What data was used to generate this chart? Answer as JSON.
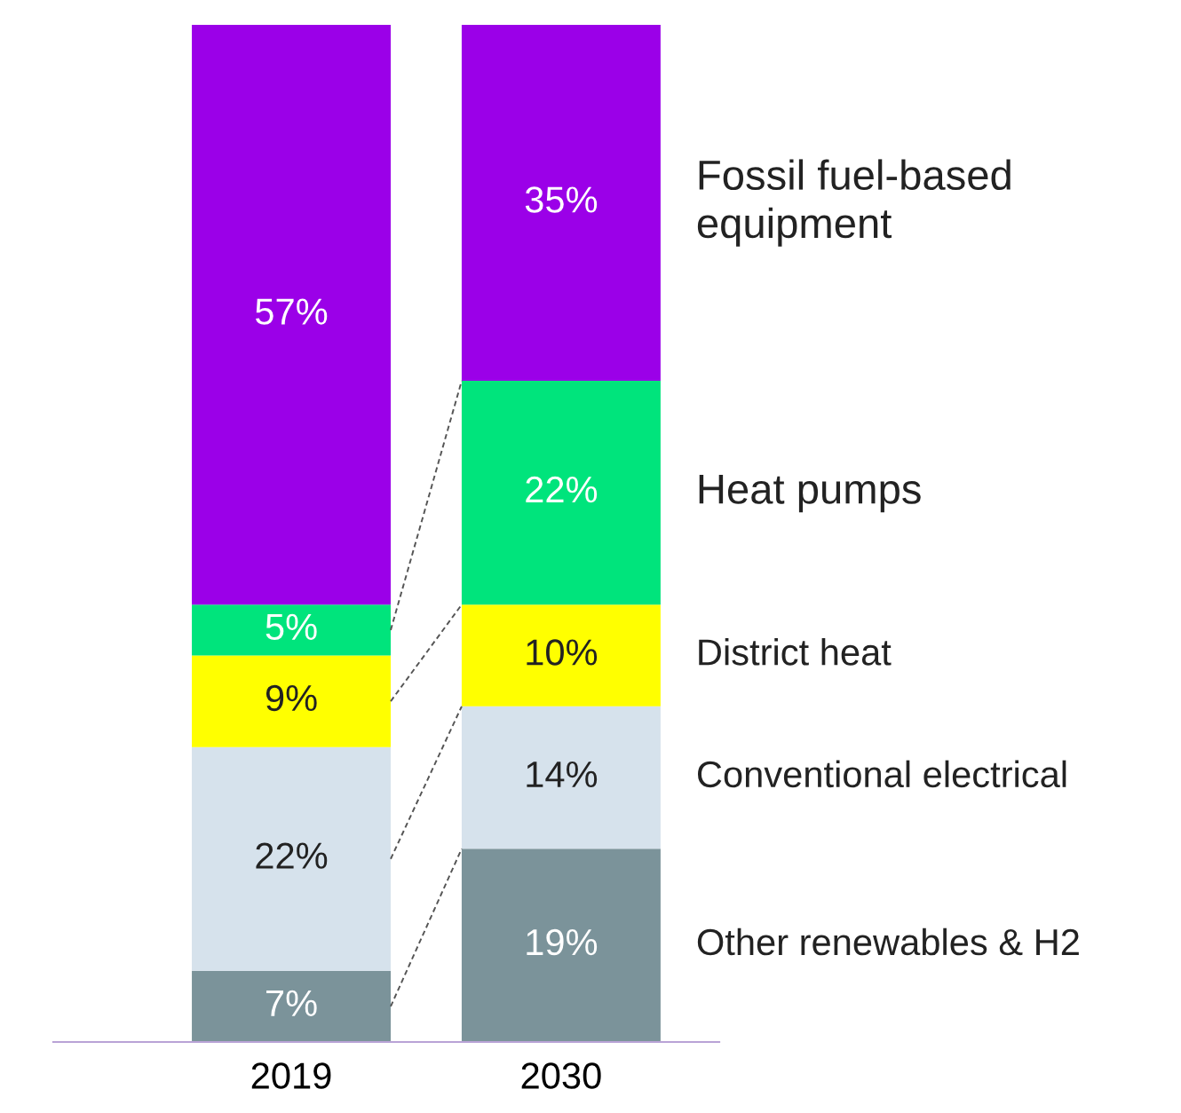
{
  "chart_data": {
    "type": "bar",
    "stacked": true,
    "categories": [
      "2019",
      "2030"
    ],
    "series": [
      {
        "name": "Other renewables & H2",
        "color": "#7b939a",
        "values": [
          7,
          19
        ],
        "value_labels": [
          "7%",
          "19%"
        ]
      },
      {
        "name": "Conventional electrical",
        "color": "#d6e2ec",
        "values": [
          22,
          14
        ],
        "value_labels": [
          "22%",
          "14%"
        ]
      },
      {
        "name": "District heat",
        "color": "#ffff00",
        "values": [
          9,
          10
        ],
        "value_labels": [
          "9%",
          "10%"
        ]
      },
      {
        "name": "Heat pumps",
        "color": "#00e47c",
        "values": [
          5,
          22
        ],
        "value_labels": [
          "5%",
          "22%"
        ]
      },
      {
        "name": "Fossil fuel-based equipment",
        "color": "#9b00e8",
        "values": [
          57,
          35
        ],
        "value_labels": [
          "57%",
          "35%"
        ]
      }
    ],
    "legend": "right"
  }
}
